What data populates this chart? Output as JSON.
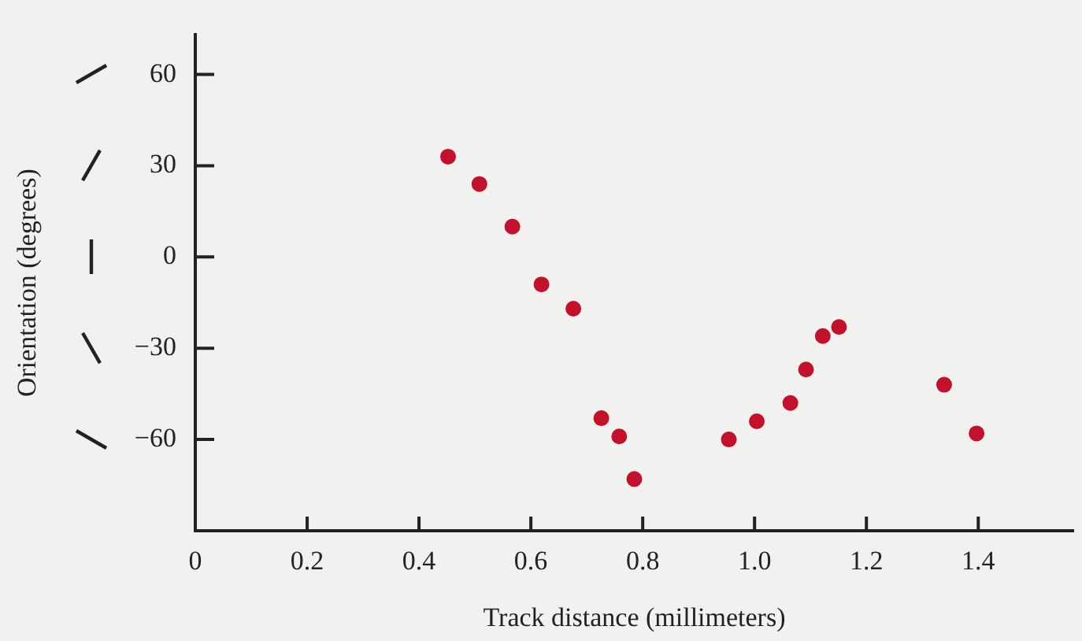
{
  "chart_data": {
    "type": "scatter",
    "xlabel": "Track distance (millimeters)",
    "ylabel": "Orientation (degrees)",
    "x": [
      0.452,
      0.508,
      0.567,
      0.619,
      0.676,
      0.726,
      0.758,
      0.785,
      0.954,
      1.004,
      1.064,
      1.092,
      1.122,
      1.151,
      1.339,
      1.397
    ],
    "values": [
      33,
      24,
      10,
      -9,
      -17,
      -53,
      -59,
      -73,
      -60,
      -54,
      -48,
      -37,
      -26,
      -23,
      -42,
      -58
    ],
    "color": "#c3112c",
    "marker": "circle",
    "grid": false,
    "xlim": [
      0,
      1.57
    ],
    "xticks": [
      0,
      0.2,
      0.4,
      0.6,
      0.8,
      {
        "value": 1,
        "label": "1.0"
      },
      1.2,
      1.4
    ],
    "ylim": [
      -90,
      73
    ],
    "yticks": [
      {
        "value": -60,
        "label": "−60"
      },
      {
        "value": -30,
        "label": "−30"
      },
      0,
      30,
      60
    ]
  }
}
